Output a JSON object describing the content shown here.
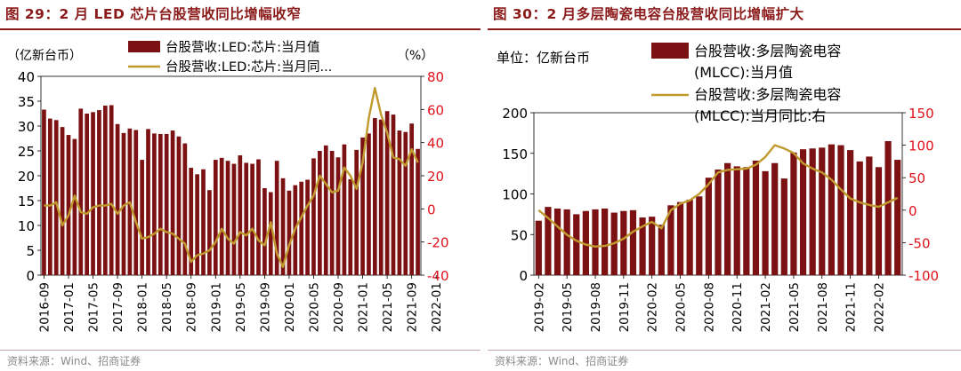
{
  "chart_data": [
    {
      "type": "bar+line",
      "title": "图 29：2 月 LED 芯片台股营收同比增幅收窄",
      "left_unit": "（亿新台币）",
      "right_unit": "（%）",
      "legend": [
        "台股营收:LED:芯片:当月值",
        "台股营收:LED:芯片:当月同..."
      ],
      "legend_position": "top",
      "left_axis": {
        "min": 0,
        "max": 40,
        "ticks": [
          "0",
          "5",
          "10",
          "15",
          "20",
          "25",
          "30",
          "35",
          "40"
        ]
      },
      "right_axis": {
        "min": -40,
        "max": 80,
        "ticks": [
          "-40",
          "-20",
          "0",
          "20",
          "40",
          "60",
          "80"
        ]
      },
      "x_tick_labels": [
        "2016-09",
        "2017-01",
        "2017-05",
        "2017-09",
        "2018-01",
        "2018-05",
        "2018-09",
        "2019-01",
        "2019-05",
        "2019-09",
        "2020-01",
        "2020-05",
        "2020-09",
        "2021-01",
        "2021-05",
        "2021-09",
        "2022-01"
      ],
      "series": [
        {
          "name": "台股营收:LED:芯片:当月值",
          "axis": "left",
          "kind": "bar",
          "values": [
            33.3,
            31.5,
            31.2,
            29.8,
            28.2,
            27.4,
            33.5,
            32.5,
            32.8,
            33.2,
            34.1,
            34.2,
            30.4,
            28.6,
            29.5,
            29.2,
            23.2,
            29.4,
            28.5,
            28.4,
            28.4,
            29.1,
            27.9,
            26.5,
            21.6,
            20.3,
            21.3,
            17.1,
            23.2,
            23.6,
            23.0,
            22.4,
            24.1,
            22.6,
            22.4,
            23.3,
            17.5,
            16.7,
            23.0,
            19.5,
            17.0,
            18.1,
            18.8,
            19.2,
            23.5,
            25.0,
            26.1,
            25.0,
            23.7,
            26.3,
            19.3,
            25.2,
            27.7,
            28.5,
            31.6,
            31.3,
            33.0,
            32.3,
            29.1,
            28.8,
            30.5,
            25.4
          ]
        },
        {
          "name": "台股营收:LED:芯片:当月同比",
          "axis": "right",
          "kind": "line",
          "values": [
            2,
            2,
            4,
            -10,
            -4,
            8,
            -2,
            -3,
            1,
            2,
            2,
            3,
            -3,
            2,
            4,
            -8,
            -18,
            -17,
            -15,
            -12,
            -14,
            -15,
            -18,
            -21,
            -32,
            -28,
            -27,
            -25,
            -20,
            -12,
            -18,
            -21,
            -14,
            -16,
            -12,
            -19,
            -22,
            -8,
            -27,
            -35,
            -22,
            -12,
            -5,
            2,
            8,
            20,
            15,
            10,
            11,
            25,
            20,
            12,
            28,
            55,
            73,
            57,
            46,
            31,
            30,
            26,
            36,
            28
          ]
        }
      ]
    },
    {
      "type": "bar+line",
      "title": "图 30：2 月多层陶瓷电容台股营收同比增幅扩大",
      "left_unit": "单位：亿新台币",
      "legend": [
        "台股营收:多层陶瓷电容",
        "(MLCC):当月值",
        "台股营收:多层陶瓷电容",
        "(MLCC):当月同比:右"
      ],
      "legend_position": "top",
      "left_axis": {
        "min": 0,
        "max": 200,
        "ticks": [
          "0",
          "50",
          "100",
          "150",
          "200"
        ]
      },
      "right_axis": {
        "min": -100,
        "max": 150,
        "ticks": [
          "-100",
          "-50",
          "0",
          "50",
          "100",
          "150"
        ]
      },
      "x_tick_labels": [
        "2019-02",
        "2019-05",
        "2019-08",
        "2019-11",
        "2020-02",
        "2020-05",
        "2020-08",
        "2020-11",
        "2021-02",
        "2021-05",
        "2021-08",
        "2021-11",
        "2022-02"
      ],
      "series": [
        {
          "name": "台股营收:多层陶瓷电容(MLCC):当月值",
          "axis": "left",
          "kind": "bar",
          "values": [
            67,
            84,
            82,
            81,
            75,
            79,
            81,
            82,
            77,
            79,
            80,
            71,
            72,
            62,
            86,
            90,
            93,
            97,
            120,
            130,
            138,
            134,
            133,
            141,
            128,
            138,
            119,
            151,
            155,
            156,
            157,
            161,
            160,
            154,
            140,
            146,
            133,
            165,
            142
          ]
        },
        {
          "name": "台股营收:多层陶瓷电容(MLCC):当月同比:右",
          "axis": "right",
          "kind": "line",
          "values": [
            0,
            -12,
            -25,
            -38,
            -47,
            -53,
            -56,
            -55,
            -51,
            -44,
            -33,
            -25,
            -18,
            -28,
            0,
            10,
            15,
            25,
            40,
            58,
            62,
            63,
            64,
            70,
            82,
            100,
            95,
            88,
            72,
            64,
            58,
            47,
            32,
            18,
            12,
            8,
            5,
            12,
            19
          ]
        }
      ]
    }
  ],
  "source_left": "资料来源：Wind、招商证券",
  "source_right": "资料来源：Wind、招商证券",
  "colors": {
    "bar": "#7b1113",
    "line": "#c19a2e",
    "title": "#8b1a1a",
    "axis_right_text": "#e0121b",
    "axis_left_text": "#000000",
    "grid": "#000000"
  }
}
